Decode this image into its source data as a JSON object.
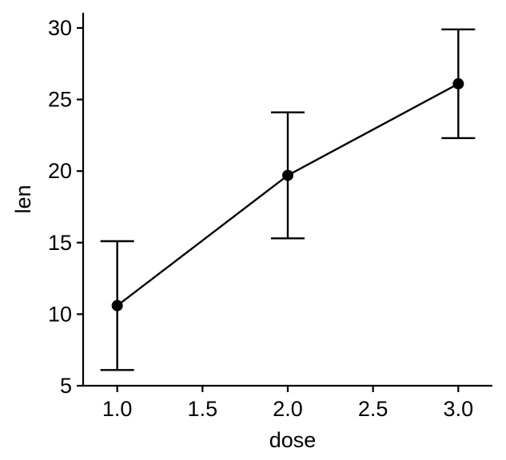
{
  "chart_data": {
    "type": "line",
    "title": "",
    "xlabel": "dose",
    "ylabel": "len",
    "xlim": [
      0.8,
      3.2
    ],
    "ylim": [
      5,
      31
    ],
    "x_ticks": [
      1.0,
      1.5,
      2.0,
      2.5,
      3.0
    ],
    "x_tick_labels": [
      "1.0",
      "1.5",
      "2.0",
      "2.5",
      "3.0"
    ],
    "y_ticks": [
      5,
      10,
      15,
      20,
      25,
      30
    ],
    "y_tick_labels": [
      "5",
      "10",
      "15",
      "20",
      "25",
      "30"
    ],
    "grid": false,
    "legend": "none",
    "series": [
      {
        "x": [
          1.0,
          2.0,
          3.0
        ],
        "y": [
          10.6,
          19.7,
          26.1
        ],
        "error_lower": [
          6.1,
          15.3,
          22.3
        ],
        "error_upper": [
          15.1,
          24.1,
          29.9
        ]
      }
    ],
    "colors": {
      "line": "#000000",
      "point": "#000000",
      "errorbar": "#000000"
    }
  }
}
